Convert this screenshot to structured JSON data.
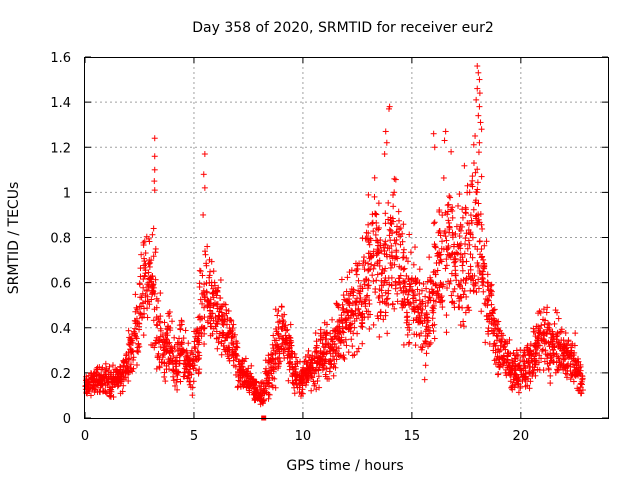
{
  "chart_data": {
    "type": "scatter",
    "title": "Day 358 of 2020, SRMTID for receiver eur2",
    "xlabel": "GPS time / hours",
    "ylabel": "SRMTID / TECUs",
    "xlim": [
      0,
      24
    ],
    "ylim": [
      0,
      1.6
    ],
    "x_ticks": [
      0,
      5,
      10,
      15,
      20
    ],
    "x_tick_labels": [
      "0",
      "5",
      "10",
      "15",
      "20"
    ],
    "y_ticks": [
      0,
      0.2,
      0.4,
      0.6,
      0.8,
      1.0,
      1.2,
      1.4,
      1.6
    ],
    "y_tick_labels": [
      "0",
      "0.2",
      "0.4",
      "0.6",
      "0.8",
      "1",
      "1.2",
      "1.4",
      "1.6"
    ],
    "grid": true,
    "marker": "plus",
    "color": "#ff0000",
    "series": [
      {
        "name": "SRMTID",
        "x": [
          0.0,
          0.25,
          0.5,
          0.75,
          1.0,
          1.25,
          1.5,
          1.75,
          2.0,
          2.25,
          2.5,
          2.75,
          3.0,
          3.25,
          3.5,
          3.75,
          4.0,
          4.25,
          4.5,
          4.75,
          5.0,
          5.25,
          5.5,
          5.75,
          6.0,
          6.25,
          6.5,
          6.75,
          7.0,
          7.25,
          7.5,
          7.75,
          8.0,
          8.25,
          8.5,
          8.75,
          9.0,
          9.25,
          9.5,
          9.75,
          10.0,
          10.25,
          10.5,
          10.75,
          11.0,
          11.25,
          11.5,
          11.75,
          12.0,
          12.25,
          12.5,
          12.75,
          13.0,
          13.25,
          13.5,
          13.75,
          14.0,
          14.25,
          14.5,
          14.75,
          15.0,
          15.25,
          15.5,
          15.75,
          16.0,
          16.25,
          16.5,
          16.75,
          17.0,
          17.25,
          17.5,
          17.75,
          18.0,
          18.25,
          18.5,
          18.75,
          19.0,
          19.25,
          19.5,
          19.75,
          20.0,
          20.25,
          20.5,
          20.75,
          21.0,
          21.25,
          21.5,
          21.75,
          22.0,
          22.25,
          22.5,
          22.75
        ],
        "y": [
          0.14,
          0.16,
          0.17,
          0.18,
          0.15,
          0.17,
          0.19,
          0.22,
          0.3,
          0.4,
          0.6,
          0.62,
          0.58,
          0.38,
          0.3,
          0.32,
          0.24,
          0.3,
          0.25,
          0.2,
          0.3,
          0.45,
          0.55,
          0.5,
          0.45,
          0.4,
          0.35,
          0.3,
          0.2,
          0.18,
          0.15,
          0.12,
          0.1,
          0.18,
          0.25,
          0.35,
          0.38,
          0.3,
          0.2,
          0.17,
          0.2,
          0.22,
          0.25,
          0.28,
          0.3,
          0.32,
          0.38,
          0.42,
          0.45,
          0.5,
          0.55,
          0.62,
          0.7,
          0.75,
          0.7,
          0.65,
          0.8,
          0.72,
          0.6,
          0.55,
          0.5,
          0.45,
          0.42,
          0.5,
          0.6,
          0.7,
          0.75,
          0.72,
          0.68,
          0.75,
          0.8,
          0.85,
          0.75,
          0.6,
          0.45,
          0.35,
          0.3,
          0.25,
          0.22,
          0.2,
          0.22,
          0.25,
          0.3,
          0.35,
          0.38,
          0.3,
          0.32,
          0.28,
          0.3,
          0.25,
          0.2,
          0.15
        ],
        "spread": [
          0.04,
          0.05,
          0.05,
          0.06,
          0.06,
          0.06,
          0.06,
          0.07,
          0.1,
          0.12,
          0.18,
          0.18,
          0.22,
          0.14,
          0.12,
          0.12,
          0.1,
          0.12,
          0.1,
          0.1,
          0.12,
          0.17,
          0.2,
          0.18,
          0.15,
          0.12,
          0.12,
          0.1,
          0.07,
          0.06,
          0.06,
          0.05,
          0.05,
          0.08,
          0.1,
          0.12,
          0.12,
          0.1,
          0.08,
          0.06,
          0.07,
          0.08,
          0.1,
          0.1,
          0.12,
          0.12,
          0.14,
          0.15,
          0.16,
          0.18,
          0.2,
          0.22,
          0.25,
          0.25,
          0.25,
          0.25,
          0.28,
          0.25,
          0.22,
          0.22,
          0.2,
          0.18,
          0.17,
          0.2,
          0.22,
          0.25,
          0.28,
          0.28,
          0.28,
          0.28,
          0.3,
          0.32,
          0.3,
          0.22,
          0.15,
          0.12,
          0.1,
          0.1,
          0.08,
          0.08,
          0.09,
          0.1,
          0.12,
          0.14,
          0.14,
          0.12,
          0.12,
          0.1,
          0.1,
          0.1,
          0.08,
          0.06
        ]
      }
    ],
    "peaks": [
      {
        "x": 3.2,
        "y": 1.24
      },
      {
        "x": 3.2,
        "y": 1.16
      },
      {
        "x": 3.2,
        "y": 1.1
      },
      {
        "x": 3.18,
        "y": 1.05
      },
      {
        "x": 3.2,
        "y": 1.01
      },
      {
        "x": 3.15,
        "y": 0.84
      },
      {
        "x": 5.5,
        "y": 1.17
      },
      {
        "x": 5.45,
        "y": 1.08
      },
      {
        "x": 5.5,
        "y": 1.02
      },
      {
        "x": 5.42,
        "y": 0.9
      },
      {
        "x": 13.95,
        "y": 1.37
      },
      {
        "x": 13.98,
        "y": 1.38
      },
      {
        "x": 13.8,
        "y": 1.27
      },
      {
        "x": 13.85,
        "y": 1.22
      },
      {
        "x": 13.75,
        "y": 1.17
      },
      {
        "x": 16.0,
        "y": 1.26
      },
      {
        "x": 16.05,
        "y": 1.2
      },
      {
        "x": 16.5,
        "y": 1.23
      },
      {
        "x": 16.55,
        "y": 1.27
      },
      {
        "x": 16.8,
        "y": 1.18
      },
      {
        "x": 18.0,
        "y": 1.56
      },
      {
        "x": 18.05,
        "y": 1.53
      },
      {
        "x": 18.1,
        "y": 1.5
      },
      {
        "x": 18.0,
        "y": 1.46
      },
      {
        "x": 18.12,
        "y": 1.44
      },
      {
        "x": 17.95,
        "y": 1.41
      },
      {
        "x": 18.1,
        "y": 1.38
      },
      {
        "x": 18.05,
        "y": 1.34
      },
      {
        "x": 18.15,
        "y": 1.31
      },
      {
        "x": 18.2,
        "y": 1.28
      },
      {
        "x": 17.9,
        "y": 1.25
      },
      {
        "x": 18.1,
        "y": 1.22
      },
      {
        "x": 17.85,
        "y": 1.13
      },
      {
        "x": 18.2,
        "y": 1.07
      },
      {
        "x": 8.2,
        "y": 0.0
      }
    ]
  }
}
